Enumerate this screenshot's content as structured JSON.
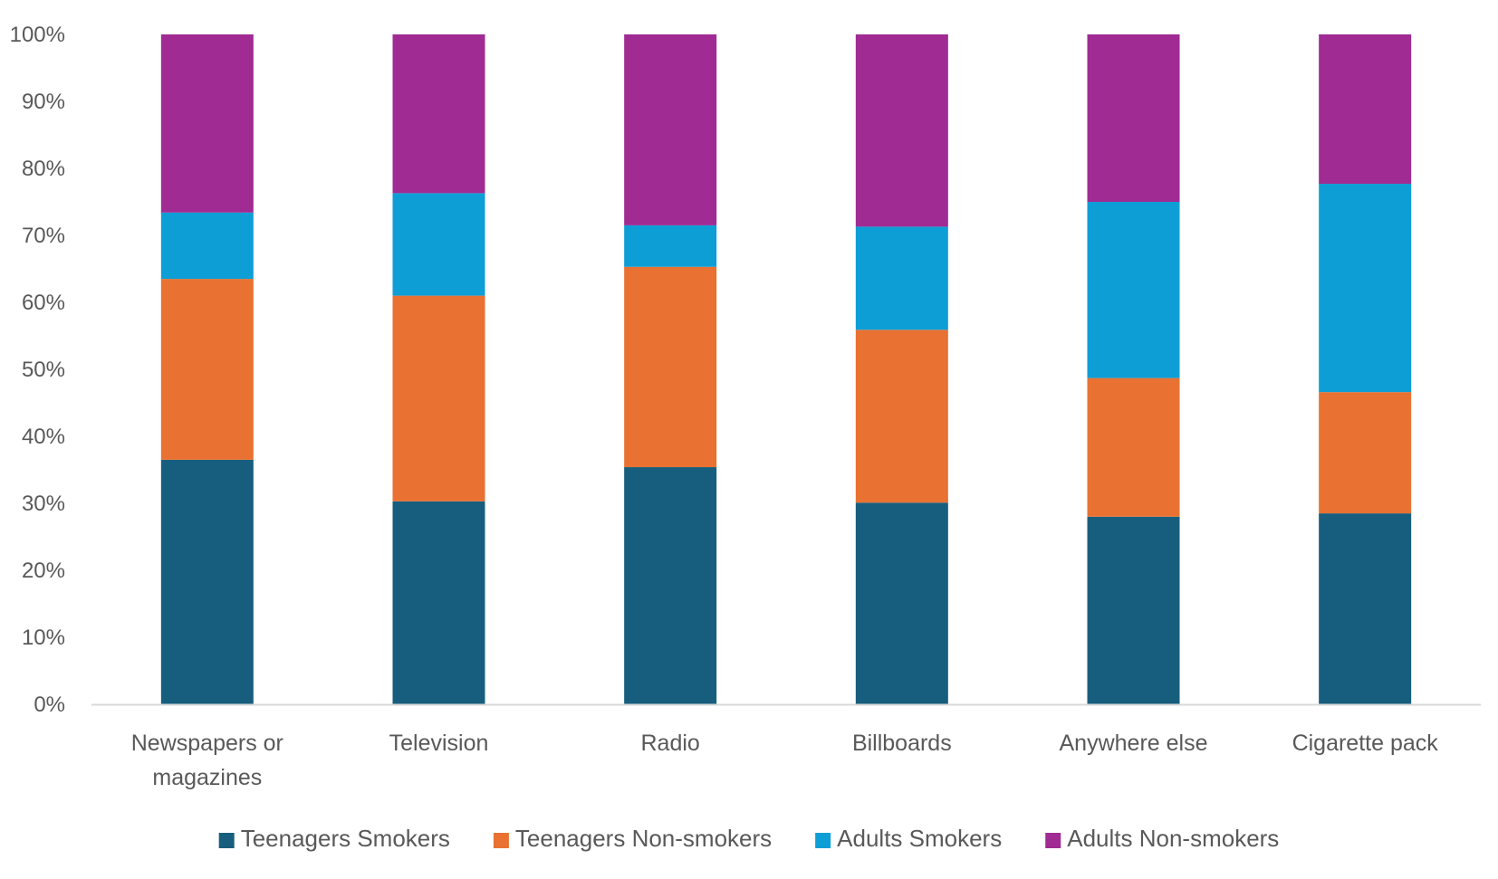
{
  "chart_data": {
    "type": "bar",
    "stacked": true,
    "categories": [
      [
        "Newspapers or",
        "magazines"
      ],
      [
        "Television"
      ],
      [
        "Radio"
      ],
      [
        "Billboards"
      ],
      [
        "Anywhere else"
      ],
      [
        "Cigarette pack"
      ]
    ],
    "series": [
      {
        "name": "Teenagers Smokers",
        "color": "#175E7E",
        "values": [
          36.5,
          30.3,
          35.4,
          30.1,
          28.0,
          28.5
        ]
      },
      {
        "name": "Teenagers Non-smokers",
        "color": "#E97132",
        "values": [
          27.0,
          30.7,
          29.9,
          25.8,
          20.7,
          18.1
        ]
      },
      {
        "name": "Adults Smokers",
        "color": "#0E9ED6",
        "values": [
          9.9,
          15.3,
          6.2,
          15.4,
          26.3,
          31.1
        ]
      },
      {
        "name": "Adults Non-smokers",
        "color": "#A02B93",
        "values": [
          26.6,
          23.7,
          28.5,
          28.7,
          25.0,
          22.3
        ]
      }
    ],
    "ylim": [
      0,
      100
    ],
    "yticks": [
      "0%",
      "10%",
      "20%",
      "30%",
      "40%",
      "50%",
      "60%",
      "70%",
      "80%",
      "90%",
      "100%"
    ],
    "grid": false,
    "legend_position": "bottom",
    "axis_color": "#D9D9D9"
  }
}
